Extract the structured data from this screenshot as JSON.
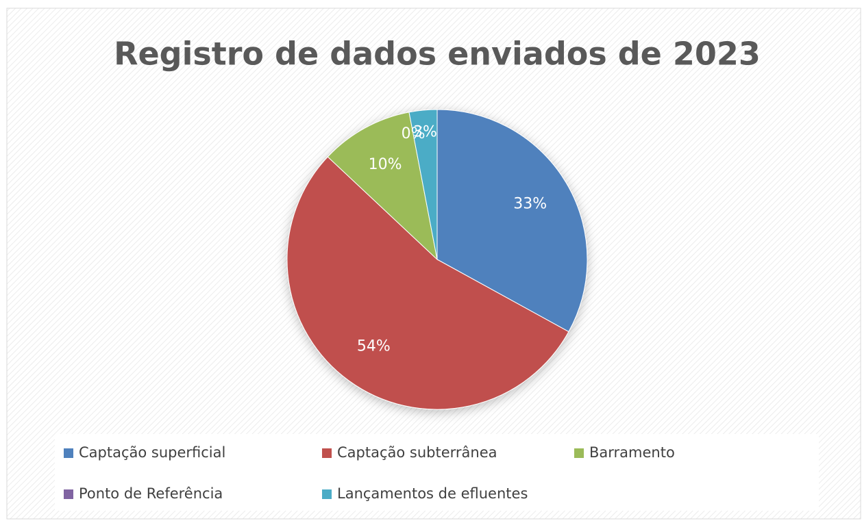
{
  "chart_data": {
    "type": "pie",
    "title": "Registro de dados enviados de  2023",
    "categories": [
      "Captação superficial",
      "Captação subterrânea",
      "Barramento",
      "Ponto de Referência",
      "Lançamentos de efluentes"
    ],
    "values": [
      33,
      54,
      10,
      0,
      3
    ],
    "value_labels": [
      "33%",
      "54%",
      "10%",
      "0%",
      "3%"
    ],
    "colors": [
      "#4f81bd",
      "#c0504d",
      "#9bbb59",
      "#8064a2",
      "#4bacc6"
    ],
    "legend": "bottom"
  }
}
